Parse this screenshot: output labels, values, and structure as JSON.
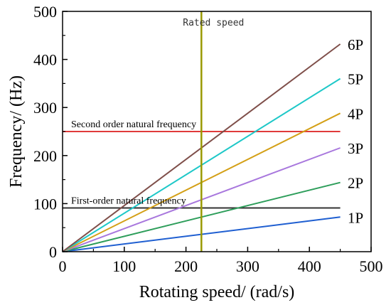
{
  "chart_data": {
    "type": "line",
    "title": "",
    "xlabel": "Rotating speed/ (rad/s)",
    "ylabel": "Frequency/ (Hz)",
    "xlim": [
      0,
      500
    ],
    "ylim": [
      0,
      500
    ],
    "xticks": [
      0,
      100,
      200,
      300,
      400,
      500
    ],
    "yticks": [
      0,
      100,
      200,
      300,
      400,
      500
    ],
    "grid": false,
    "legend": "inline-right",
    "series": [
      {
        "name": "1P",
        "x": [
          0,
          450
        ],
        "y": [
          0,
          72
        ],
        "color": "#1f5fd1"
      },
      {
        "name": "2P",
        "x": [
          0,
          450
        ],
        "y": [
          0,
          144
        ],
        "color": "#2e9e5b"
      },
      {
        "name": "3P",
        "x": [
          0,
          450
        ],
        "y": [
          0,
          216
        ],
        "color": "#a877dd"
      },
      {
        "name": "4P",
        "x": [
          0,
          450
        ],
        "y": [
          0,
          288
        ],
        "color": "#d4a017"
      },
      {
        "name": "5P",
        "x": [
          0,
          450
        ],
        "y": [
          0,
          360
        ],
        "color": "#1ec8c8"
      },
      {
        "name": "6P",
        "x": [
          0,
          450
        ],
        "y": [
          0,
          432
        ],
        "color": "#7f4f4a"
      }
    ],
    "hlines": [
      {
        "label": "Second order natural frequency",
        "y": 250,
        "x": [
          0,
          450
        ],
        "color": "#e03a3a"
      },
      {
        "label": "First-order natural frequency",
        "y": 91,
        "x": [
          0,
          450
        ],
        "color": "#333333"
      }
    ],
    "vlines": [
      {
        "label": "Rated speed",
        "x": 225,
        "color": "#9a9a00"
      }
    ]
  }
}
